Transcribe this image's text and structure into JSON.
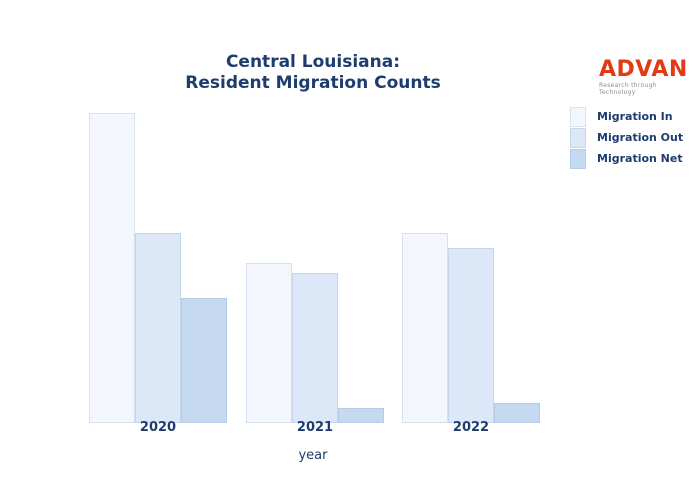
{
  "title": {
    "line1": "Central Louisiana:",
    "line2": "Resident Migration Counts"
  },
  "logo": {
    "name": "ADVAN",
    "tagline": "Research through Technology",
    "color": "#e23a16",
    "tagline_color": "#8e8e8e"
  },
  "colors": {
    "text": "#1e3c6e",
    "background": "#ffffff"
  },
  "chart_data": {
    "type": "bar",
    "title": "Central Louisiana: Resident Migration Counts",
    "categories": [
      "2020",
      "2021",
      "2022"
    ],
    "series": [
      {
        "name": "Migration In",
        "color": "#f3f7fd",
        "values": [
          310,
          160,
          190
        ]
      },
      {
        "name": "Migration Out",
        "color": "#dce8f8",
        "values": [
          190,
          150,
          175
        ]
      },
      {
        "name": "Migration Net",
        "color": "#c5daf1",
        "values": [
          125,
          15,
          20
        ]
      }
    ],
    "xlabel": "year",
    "ylabel": "",
    "ylim": [
      0,
      330
    ],
    "y_axis_visible": false,
    "grid": false,
    "legend_position": "upper right",
    "values_note": "relative units estimated from bar heights; no y-axis tick labels shown"
  }
}
